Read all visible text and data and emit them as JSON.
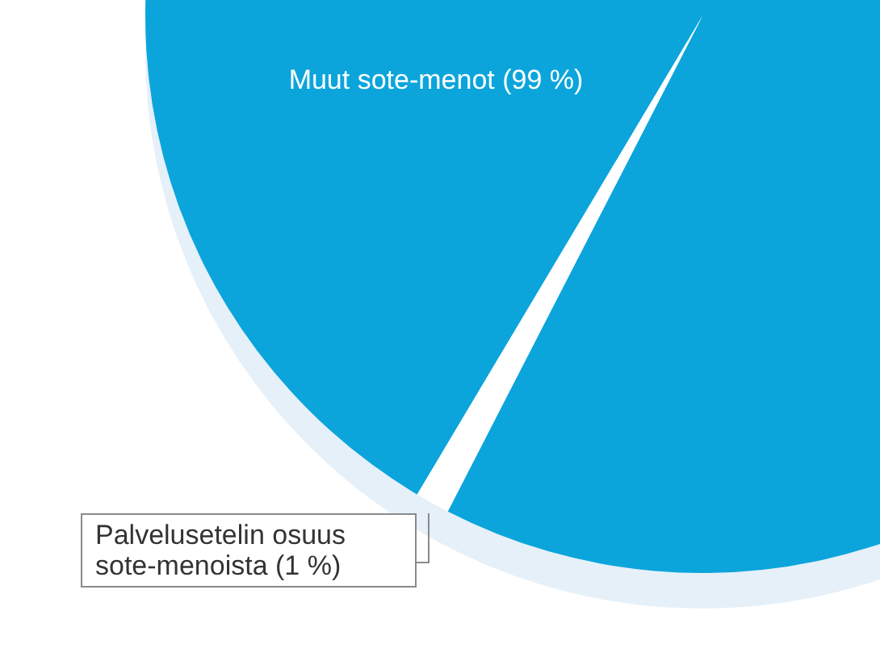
{
  "chart_data": {
    "type": "pie",
    "categories": [
      "Muut sote-menot (99 %)",
      "Palvelusetelin osuus sote-menoista (1 %)"
    ],
    "values": [
      99,
      1
    ],
    "colors": [
      "#0ba5dc",
      "#ffffff"
    ],
    "legend": false
  }
}
